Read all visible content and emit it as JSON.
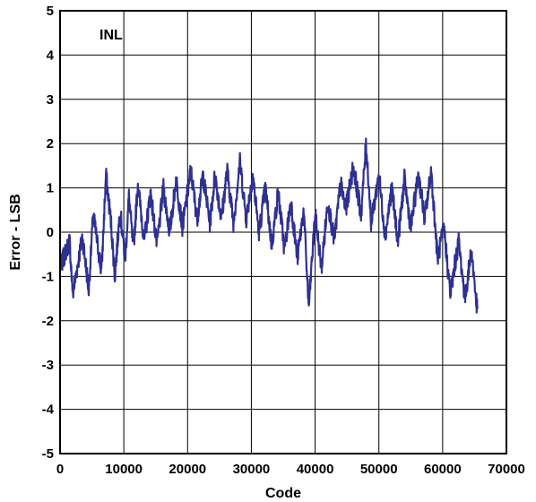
{
  "chart_data": {
    "type": "line",
    "title": "",
    "annotation": "INL",
    "xlabel": "Code",
    "ylabel": "Error - LSB",
    "xlim": [
      0,
      70000
    ],
    "ylim": [
      -5,
      5
    ],
    "xticks": [
      "0",
      "10000",
      "20000",
      "30000",
      "40000",
      "50000",
      "60000",
      "70000"
    ],
    "yticks": [
      "5",
      "4",
      "3",
      "2",
      "1",
      "0",
      "-1",
      "-2",
      "-3",
      "-4",
      "-5"
    ],
    "grid": true,
    "line_color": "#2e3192",
    "series": [
      {
        "x": [
          0,
          1500,
          2000,
          3500,
          4500,
          5200,
          6500,
          7200,
          8000,
          8600,
          9400,
          10200,
          10800,
          11500,
          12200,
          13200,
          14200,
          15200,
          16200,
          17200,
          18200,
          19200,
          20500,
          21500,
          22400,
          23500,
          24300,
          25300,
          26200,
          27200,
          28200,
          29200,
          30200,
          31200,
          32200,
          33200,
          34200,
          35200,
          36200,
          37200,
          38200,
          39000,
          40000,
          41000,
          42000,
          43000,
          44000,
          44800,
          46000,
          47200,
          48000,
          48800,
          50000,
          51000,
          52000,
          53000,
          54000,
          55000,
          56200,
          57200,
          58200,
          59200,
          60200,
          61200,
          62500,
          63500,
          64500,
          65500
        ],
        "y": [
          -0.8,
          -0.2,
          -1.4,
          -0.1,
          -1.3,
          0.4,
          -0.9,
          1.3,
          0.2,
          -1.0,
          0.5,
          -0.6,
          0.8,
          -0.4,
          1.1,
          -0.2,
          0.9,
          -0.3,
          1.0,
          0.0,
          1.2,
          0.1,
          1.4,
          0.3,
          1.3,
          0.2,
          1.3,
          0.3,
          1.4,
          0.2,
          1.6,
          0.3,
          1.3,
          0.0,
          1.0,
          -0.3,
          0.9,
          -0.4,
          0.7,
          -0.6,
          0.5,
          -1.7,
          0.4,
          -0.8,
          0.7,
          -0.2,
          1.1,
          0.5,
          1.5,
          0.4,
          2.0,
          0.2,
          1.3,
          -0.1,
          1.0,
          -0.2,
          1.2,
          0.1,
          1.3,
          0.3,
          1.4,
          -0.6,
          0.1,
          -1.4,
          -0.2,
          -1.5,
          -0.4,
          -1.9
        ]
      }
    ]
  }
}
